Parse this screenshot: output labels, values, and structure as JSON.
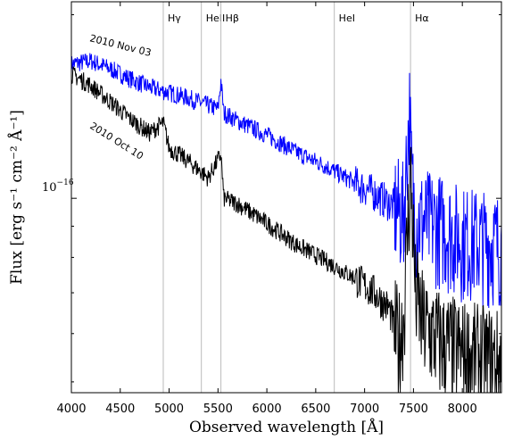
{
  "chart_data": {
    "type": "line",
    "title": "",
    "xlabel": "Observed wavelength [Å]",
    "ylabel": "Flux [erg s⁻¹ cm⁻² Å⁻¹]",
    "xlim": [
      4000,
      8400
    ],
    "ylim": [
      4.8e-17,
      2.1e-16
    ],
    "y_scale": "log",
    "x_ticks": [
      4000,
      4500,
      5000,
      5500,
      6000,
      6500,
      7000,
      7500,
      8000
    ],
    "x_tick_labels": [
      "4000",
      "4500",
      "5000",
      "5500",
      "6000",
      "6500",
      "7000",
      "7500",
      "8000"
    ],
    "y_tick_label": {
      "base": "10",
      "exponent": "−16"
    },
    "y_tick_value": 1e-16,
    "grid": false,
    "lines": [
      {
        "label": "Hγ",
        "x": 4940
      },
      {
        "label": "HeII",
        "x": 5330
      },
      {
        "label": "Hβ",
        "x": 5530
      },
      {
        "label": "HeI",
        "x": 6690
      },
      {
        "label": "Hα",
        "x": 7470
      }
    ],
    "series": [
      {
        "name": "2010 Nov 03",
        "color": "#0000ff",
        "x": [
          4000,
          4200,
          4400,
          4600,
          4800,
          5000,
          5200,
          5400,
          5500,
          5530,
          5560,
          5700,
          6000,
          6300,
          6600,
          6900,
          7100,
          7300,
          7400,
          7460,
          7480,
          7520,
          7600,
          7800,
          8000,
          8200,
          8400
        ],
        "y": [
          1.66e-16,
          1.68e-16,
          1.63e-16,
          1.57e-16,
          1.52e-16,
          1.49e-16,
          1.46e-16,
          1.42e-16,
          1.4e-16,
          1.56e-16,
          1.38e-16,
          1.34e-16,
          1.27e-16,
          1.19e-16,
          1.13e-16,
          1.06e-16,
          1.02e-16,
          9.7e-17,
          9.4e-17,
          1.4e-16,
          1.1e-16,
          9.2e-17,
          9.2e-17,
          9e-17,
          8.6e-17,
          8.5e-17,
          8.4e-17
        ]
      },
      {
        "name": "2010 Oct 10",
        "color": "#000000",
        "x": [
          4000,
          4200,
          4400,
          4600,
          4800,
          4940,
          5000,
          5200,
          5400,
          5530,
          5560,
          5700,
          6000,
          6300,
          6600,
          6900,
          7100,
          7250,
          7350,
          7400,
          7470,
          7520,
          7600,
          7800,
          8000,
          8200,
          8400
        ],
        "y": [
          1.6e-16,
          1.53e-16,
          1.44e-16,
          1.35e-16,
          1.28e-16,
          1.33e-16,
          1.21e-16,
          1.15e-16,
          1.08e-16,
          1.18e-16,
          1e-16,
          9.8e-17,
          9.1e-17,
          8.4e-17,
          7.9e-17,
          7.4e-17,
          7e-17,
          6.6e-17,
          5.8e-17,
          6.4e-17,
          1.13e-16,
          7e-17,
          6.2e-17,
          5.8e-17,
          5.6e-17,
          5.5e-17,
          5.4e-17
        ]
      }
    ]
  }
}
